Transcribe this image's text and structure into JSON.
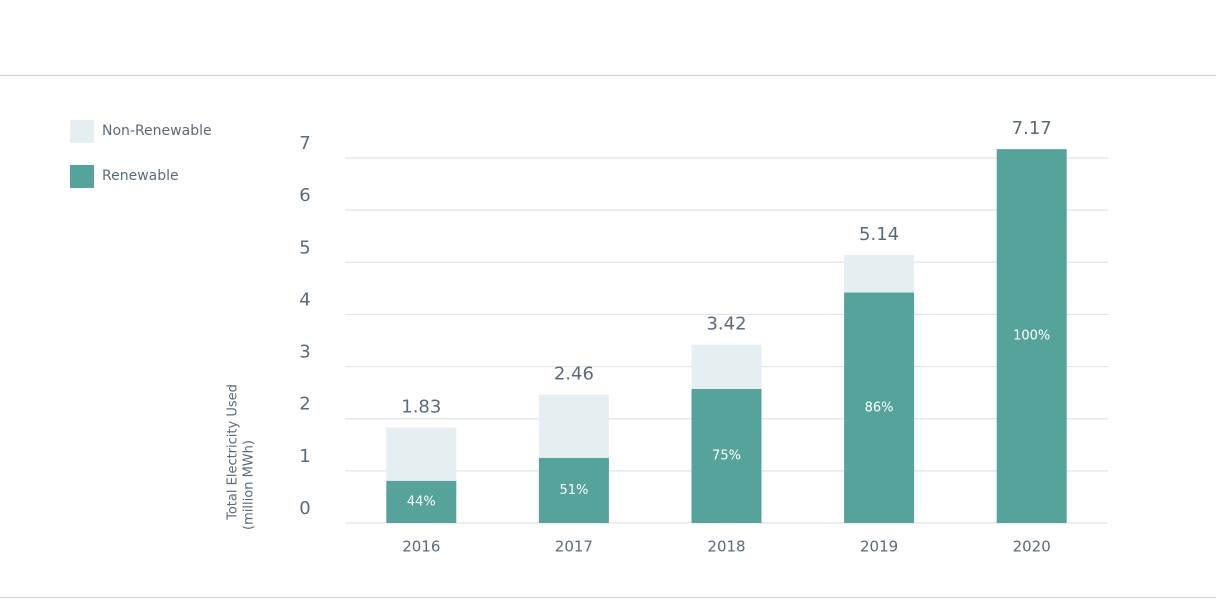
{
  "chart_data": {
    "type": "stacked_bar",
    "y_label": [
      "Total Electricity Used",
      "(million MWh)"
    ],
    "categories": [
      "2016",
      "2017",
      "2018",
      "2019",
      "2020"
    ],
    "series": [
      {
        "name": "Renewable",
        "color": "#55a39b",
        "values": [
          0.81,
          1.25,
          2.57,
          4.42,
          7.17
        ],
        "value_labels": [
          "44%",
          "51%",
          "75%",
          "86%",
          "100%"
        ]
      },
      {
        "name": "Non-Renewable",
        "color": "#e5eef0",
        "values": [
          1.02,
          1.21,
          0.85,
          0.72,
          0
        ]
      }
    ],
    "totals": [
      1.83,
      2.46,
      3.42,
      5.14,
      7.17
    ],
    "ylim": [
      0,
      7
    ],
    "yticks": [
      0,
      1,
      2,
      3,
      4,
      5,
      6,
      7
    ],
    "grid": true
  }
}
